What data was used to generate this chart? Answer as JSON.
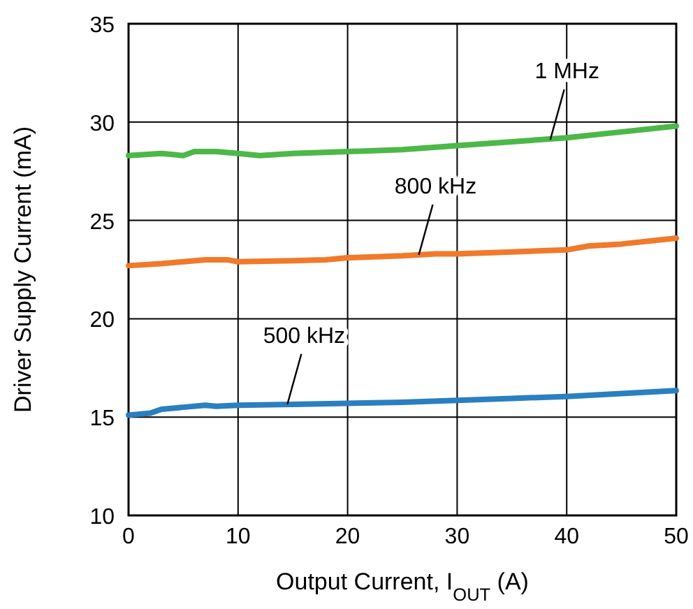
{
  "chart_data": {
    "type": "line",
    "xlabel": "Output Current, I$_{OUT}$ (A)",
    "ylabel": "Driver Supply Current (mA)",
    "xlim": [
      0,
      50
    ],
    "xticks": [
      0,
      10,
      20,
      30,
      40,
      50
    ],
    "ylim": [
      10,
      35
    ],
    "yticks": [
      10,
      15,
      20,
      25,
      30,
      35
    ],
    "grid": true,
    "line_style": "solid",
    "marker": "none",
    "series": [
      {
        "color": "#4cb848",
        "x": [
          0,
          3,
          5,
          6,
          8,
          10,
          12,
          15,
          20,
          25,
          30,
          35,
          40,
          45,
          50
        ],
        "values": [
          28.3,
          28.4,
          28.3,
          28.5,
          28.5,
          28.4,
          28.3,
          28.4,
          28.5,
          28.6,
          28.8,
          29.0,
          29.2,
          29.5,
          29.8
        ]
      },
      {
        "color": "#f07a2a",
        "x": [
          0,
          3,
          5,
          7,
          9,
          10,
          15,
          18,
          20,
          25,
          28,
          30,
          35,
          40,
          42,
          45,
          50
        ],
        "values": [
          22.7,
          22.8,
          22.9,
          23.0,
          23.0,
          22.9,
          22.95,
          23.0,
          23.1,
          23.2,
          23.3,
          23.3,
          23.4,
          23.5,
          23.7,
          23.8,
          24.1
        ]
      },
      {
        "color": "#2a7fc0",
        "x": [
          0,
          2,
          3,
          5,
          7,
          8,
          10,
          15,
          20,
          25,
          30,
          35,
          40,
          45,
          50
        ],
        "values": [
          15.1,
          15.2,
          15.4,
          15.5,
          15.6,
          15.55,
          15.6,
          15.65,
          15.7,
          15.75,
          15.85,
          15.95,
          16.05,
          16.2,
          16.35
        ]
      }
    ],
    "annotations": [
      {
        "text": "1 MHz",
        "x": 38.5,
        "y": 29.1
      },
      {
        "text": "800 kHz",
        "x": 26.5,
        "y": 23.25
      },
      {
        "text": "500 kHz",
        "x": 14.5,
        "y": 15.65
      }
    ]
  }
}
